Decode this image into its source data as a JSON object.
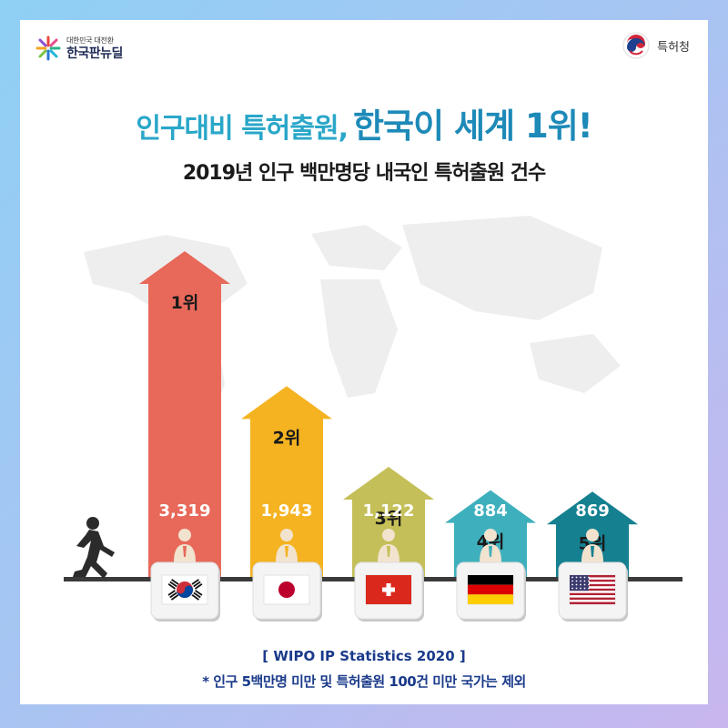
{
  "branding": {
    "left_logo_sub": "대한민국 대전환",
    "left_logo_main": "한국판뉴딜",
    "right_logo": "특허청"
  },
  "headline": {
    "lead": "인구대비 특허출원,",
    "emphasis": "한국이 세계 1위!"
  },
  "colors": {
    "bars": [
      "#e8695a",
      "#f5b321",
      "#c4bf58",
      "#3eb0bd",
      "#148090"
    ],
    "axis": "#3a3a3a",
    "map": "#eeeeee"
  },
  "chart_data": {
    "type": "bar",
    "title": "2019년 인구 백만명당 내국인 특허출원 건수",
    "categories": [
      "Korea",
      "Japan",
      "Switzerland",
      "Germany",
      "United States"
    ],
    "values": [
      3319,
      1943,
      1122,
      884,
      869
    ],
    "value_labels": [
      "3,319",
      "1,943",
      "1,122",
      "884",
      "869"
    ],
    "ranks": [
      "1위",
      "2위",
      "3위",
      "4위",
      "5위"
    ],
    "flags": [
      "korea-flag",
      "japan-flag",
      "switzerland-flag",
      "germany-flag",
      "usa-flag"
    ],
    "ylim": [
      0,
      3319
    ],
    "grid": false,
    "legend": "none"
  },
  "source": "[ WIPO IP Statistics 2020 ]",
  "footnote": "* 인구 5백만명 미만 및 특허출원 100건 미만 국가는 제외"
}
